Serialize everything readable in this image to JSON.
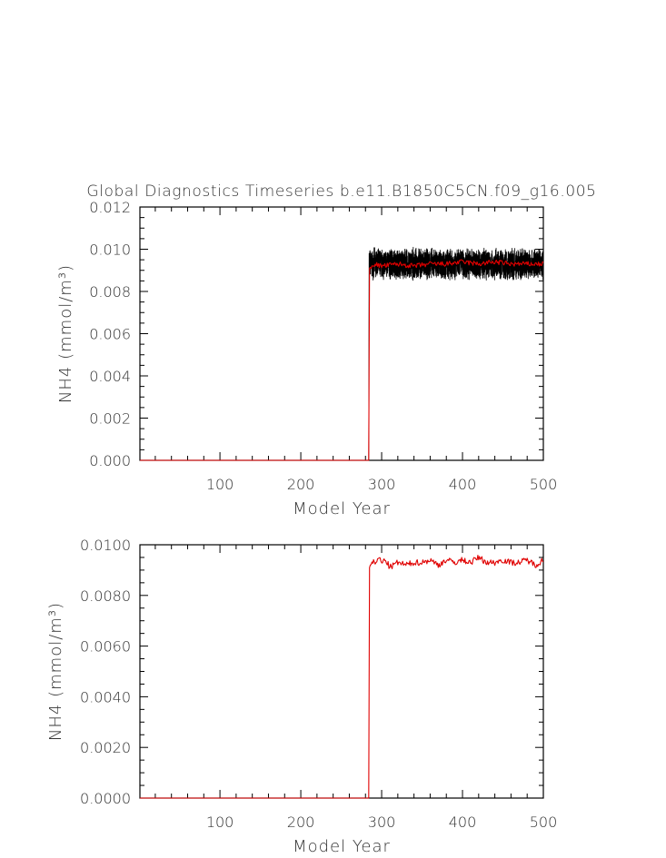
{
  "title": "Global Diagnostics Timeseries b.e11.B1850C5CN.f09_g16.005",
  "colors": {
    "monthly": "#000000",
    "annual": "#e00000",
    "axes": "#000000",
    "text": "#333333"
  },
  "chart_data": [
    {
      "type": "line",
      "title": "Global Diagnostics Timeseries b.e11.B1850C5CN.f09_g16.005",
      "xlabel": "Model Year",
      "ylabel": "NH4 (mmol/m³)",
      "xlim": [
        1,
        500
      ],
      "ylim": [
        0,
        0.012
      ],
      "xticks": [
        100,
        200,
        300,
        400,
        500
      ],
      "xtick_labels": [
        "100",
        "200",
        "300",
        "400",
        "500"
      ],
      "yticks": [
        0,
        0.002,
        0.004,
        0.006,
        0.008,
        0.01,
        0.012
      ],
      "ytick_labels": [
        "0.000",
        "0.002",
        "0.004",
        "0.006",
        "0.008",
        "0.010",
        "0.012"
      ],
      "grid": false,
      "series": [
        {
          "color": "black",
          "style": "monthly",
          "x_start": 1,
          "x_end": 500,
          "data": [
            [
              1,
              0
            ],
            [
              284,
              0
            ],
            [
              285,
              0.0096
            ],
            [
              286,
              0.0092
            ],
            [
              300,
              0.0093
            ],
            [
              350,
              0.0093
            ],
            [
              400,
              0.0094
            ],
            [
              450,
              0.0093
            ],
            [
              500,
              0.0093
            ]
          ],
          "band": [
            0.0087,
            0.0103
          ]
        },
        {
          "color": "red",
          "style": "annual",
          "data": [
            [
              1,
              0
            ],
            [
              284,
              0
            ],
            [
              285,
              0.0091
            ],
            [
              290,
              0.0093
            ],
            [
              300,
              0.0092
            ],
            [
              320,
              0.0093
            ],
            [
              340,
              0.0092
            ],
            [
              360,
              0.0093
            ],
            [
              380,
              0.0093
            ],
            [
              400,
              0.0094
            ],
            [
              420,
              0.0093
            ],
            [
              440,
              0.0094
            ],
            [
              460,
              0.0093
            ],
            [
              480,
              0.0093
            ],
            [
              500,
              0.0093
            ]
          ]
        }
      ]
    },
    {
      "type": "line",
      "xlabel": "Model Year",
      "ylabel": "NH4 (mmol/m³)",
      "xlim": [
        1,
        500
      ],
      "ylim": [
        0,
        0.01
      ],
      "xticks": [
        100,
        200,
        300,
        400,
        500
      ],
      "xtick_labels": [
        "100",
        "200",
        "300",
        "400",
        "500"
      ],
      "yticks": [
        0,
        0.002,
        0.004,
        0.006,
        0.008,
        0.01
      ],
      "ytick_labels": [
        "0.0000",
        "0.0020",
        "0.0040",
        "0.0060",
        "0.0080",
        "0.0100"
      ],
      "grid": false,
      "series": [
        {
          "color": "red",
          "style": "annual",
          "data": [
            [
              1,
              0
            ],
            [
              284,
              0
            ],
            [
              285,
              0.0091
            ],
            [
              288,
              0.0094
            ],
            [
              292,
              0.0092
            ],
            [
              296,
              0.0095
            ],
            [
              300,
              0.0093
            ],
            [
              305,
              0.0094
            ],
            [
              310,
              0.0091
            ],
            [
              320,
              0.0093
            ],
            [
              330,
              0.0092
            ],
            [
              340,
              0.0093
            ],
            [
              350,
              0.0093
            ],
            [
              360,
              0.0094
            ],
            [
              370,
              0.0092
            ],
            [
              380,
              0.0094
            ],
            [
              390,
              0.0093
            ],
            [
              400,
              0.0094
            ],
            [
              410,
              0.0093
            ],
            [
              420,
              0.0095
            ],
            [
              430,
              0.0093
            ],
            [
              440,
              0.0093
            ],
            [
              450,
              0.0094
            ],
            [
              460,
              0.0093
            ],
            [
              470,
              0.0093
            ],
            [
              480,
              0.0094
            ],
            [
              490,
              0.0092
            ],
            [
              500,
              0.0094
            ]
          ]
        }
      ]
    }
  ]
}
